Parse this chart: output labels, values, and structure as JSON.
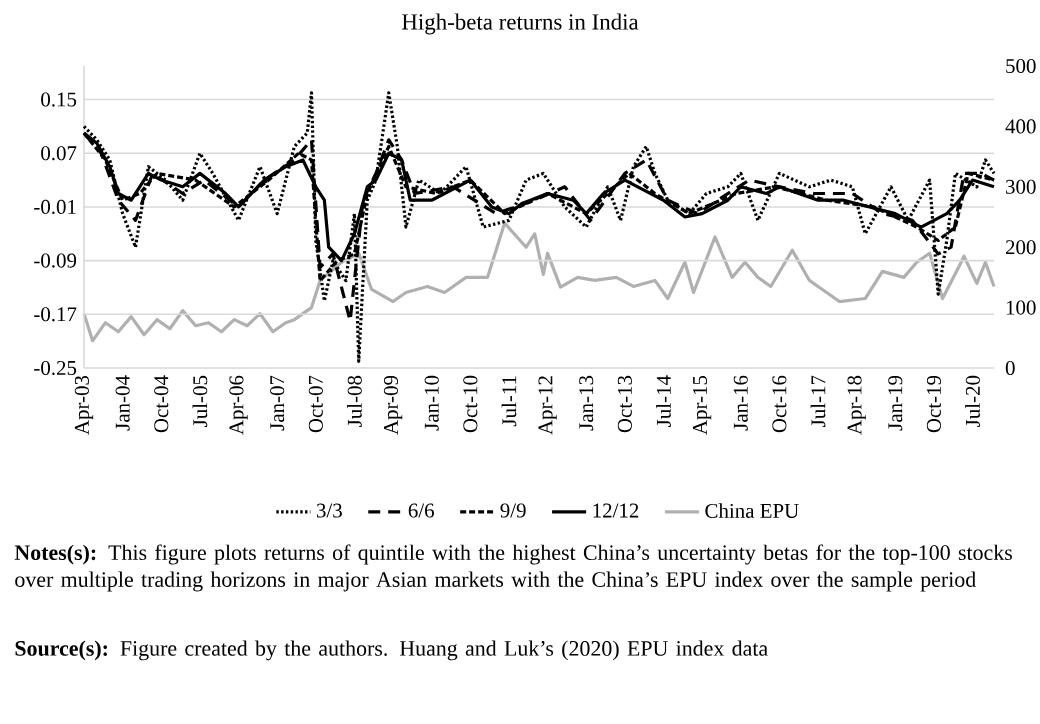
{
  "chart_data": {
    "type": "line",
    "title": "High-beta returns in India",
    "annotations": [
      "**Notes(s):** This figure plots returns of quintile with the highest China’s uncertainty betas for the top-100 stocks over multiple trading horizons in major Asian markets with the China’s EPU index over the sample period",
      "**Source(s):** Figure created by the authors. Huang and Luk’s (2020) EPU index data"
    ],
    "series": [
      {
        "name": "3/3",
        "color": "#000000",
        "line_style": "dotted",
        "x": [
          "2003-04",
          "2003-07",
          "2003-10",
          "2004-01",
          "2004-04",
          "2004-07",
          "2004-11",
          "2005-03",
          "2005-07",
          "2005-10",
          "2006-04",
          "2006-09",
          "2007-01",
          "2007-05",
          "2007-08",
          "2007-09",
          "2007-10",
          "2007-12",
          "2008-02",
          "2008-05",
          "2008-07",
          "2008-08",
          "2008-10",
          "2008-12",
          "2009-03",
          "2009-05",
          "2009-07",
          "2009-10",
          "2010-03",
          "2010-09",
          "2011-01",
          "2011-07",
          "2011-11",
          "2012-03",
          "2012-08",
          "2013-01",
          "2013-06",
          "2013-09",
          "2013-12",
          "2014-03",
          "2014-05",
          "2014-08",
          "2015-01",
          "2015-05",
          "2015-10",
          "2016-01",
          "2016-05",
          "2016-10",
          "2017-05",
          "2017-10",
          "2018-03",
          "2018-06",
          "2018-12",
          "2019-04",
          "2019-09",
          "2019-11",
          "2020-01",
          "2020-03",
          "2020-08",
          "2020-10",
          "2020-12"
        ],
        "values": [
          0.11,
          0.09,
          0.06,
          -0.02,
          -0.07,
          0.05,
          0.03,
          0.0,
          0.07,
          0.04,
          -0.03,
          0.05,
          -0.02,
          0.08,
          0.1,
          0.16,
          -0.06,
          -0.15,
          -0.09,
          -0.12,
          -0.02,
          -0.24,
          0.0,
          0.03,
          0.16,
          0.08,
          -0.04,
          0.03,
          0.01,
          0.05,
          -0.04,
          -0.03,
          0.03,
          0.04,
          -0.01,
          -0.04,
          0.02,
          -0.03,
          0.05,
          0.08,
          0.04,
          0.0,
          -0.02,
          0.01,
          0.02,
          0.04,
          -0.03,
          0.04,
          0.02,
          0.03,
          0.02,
          -0.05,
          0.02,
          -0.03,
          0.03,
          -0.14,
          -0.06,
          0.04,
          0.02,
          0.06,
          0.04
        ]
      },
      {
        "name": "6/6",
        "color": "#000000",
        "line_style": "dashed",
        "x": [
          "2003-04",
          "2003-08",
          "2003-12",
          "2004-04",
          "2004-08",
          "2005-03",
          "2005-08",
          "2006-04",
          "2006-10",
          "2007-05",
          "2007-09",
          "2007-11",
          "2008-02",
          "2008-06",
          "2008-09",
          "2008-12",
          "2009-03",
          "2009-06",
          "2009-09",
          "2010-06",
          "2011-04",
          "2012-01",
          "2012-08",
          "2013-02",
          "2013-10",
          "2014-03",
          "2014-08",
          "2015-03",
          "2015-10",
          "2016-03",
          "2016-10",
          "2017-06",
          "2018-03",
          "2018-10",
          "2019-05",
          "2019-11",
          "2020-02",
          "2020-05",
          "2020-09",
          "2020-12"
        ],
        "values": [
          0.1,
          0.07,
          0.0,
          -0.03,
          0.04,
          0.01,
          0.03,
          -0.01,
          0.03,
          0.06,
          0.09,
          -0.1,
          -0.08,
          -0.18,
          0.0,
          0.04,
          0.09,
          0.06,
          0.01,
          0.02,
          -0.02,
          0.0,
          0.02,
          -0.03,
          0.04,
          0.06,
          0.0,
          -0.02,
          0.01,
          0.03,
          0.02,
          0.01,
          0.01,
          -0.02,
          -0.03,
          -0.08,
          -0.07,
          0.04,
          0.04,
          0.03
        ]
      },
      {
        "name": "9/9",
        "color": "#000000",
        "line_style": "dashed",
        "x": [
          "2003-04",
          "2003-09",
          "2004-01",
          "2004-05",
          "2004-09",
          "2005-06",
          "2006-03",
          "2006-11",
          "2007-06",
          "2007-09",
          "2007-11",
          "2008-03",
          "2008-07",
          "2008-10",
          "2009-03",
          "2009-07",
          "2010-02",
          "2010-10",
          "2011-06",
          "2012-04",
          "2013-01",
          "2013-11",
          "2014-05",
          "2015-01",
          "2015-12",
          "2016-09",
          "2017-09",
          "2018-08",
          "2019-06",
          "2019-11",
          "2020-03",
          "2020-06",
          "2020-12"
        ],
        "values": [
          0.1,
          0.06,
          0.0,
          0.01,
          0.04,
          0.03,
          -0.01,
          0.03,
          0.07,
          0.06,
          -0.12,
          -0.09,
          -0.08,
          0.01,
          0.08,
          0.02,
          0.01,
          0.03,
          -0.02,
          0.01,
          -0.02,
          0.04,
          0.01,
          -0.02,
          0.01,
          0.02,
          0.0,
          -0.01,
          -0.04,
          -0.06,
          -0.04,
          0.04,
          0.03
        ]
      },
      {
        "name": "12/12",
        "color": "#000000",
        "line_style": "solid",
        "x": [
          "2003-04",
          "2003-07",
          "2003-10",
          "2003-12",
          "2004-03",
          "2004-07",
          "2004-10",
          "2005-03",
          "2005-07",
          "2006-01",
          "2006-04",
          "2006-10",
          "2007-03",
          "2007-07",
          "2007-10",
          "2007-12",
          "2008-01",
          "2008-04",
          "2008-07",
          "2008-10",
          "2008-12",
          "2009-03",
          "2009-06",
          "2009-08",
          "2010-01",
          "2010-10",
          "2011-03",
          "2011-07",
          "2011-10",
          "2011-12",
          "2012-04",
          "2012-10",
          "2013-01",
          "2013-05",
          "2013-10",
          "2014-01",
          "2014-07",
          "2014-12",
          "2015-04",
          "2015-10",
          "2016-01",
          "2016-07",
          "2016-10",
          "2017-07",
          "2018-01",
          "2018-07",
          "2019-01",
          "2019-07",
          "2019-10",
          "2020-01",
          "2020-04",
          "2020-07",
          "2020-12"
        ],
        "values": [
          0.1,
          0.085,
          0.05,
          0.01,
          0.0,
          0.04,
          0.03,
          0.02,
          0.04,
          0.01,
          -0.01,
          0.03,
          0.05,
          0.06,
          0.02,
          0.0,
          -0.07,
          -0.09,
          -0.05,
          0.02,
          0.03,
          0.07,
          0.06,
          0.0,
          0.0,
          0.03,
          -0.01,
          -0.02,
          -0.005,
          0.0,
          0.01,
          0.0,
          -0.02,
          0.01,
          0.03,
          0.02,
          0.0,
          -0.025,
          -0.02,
          0.0,
          0.02,
          0.01,
          0.02,
          0.0,
          0.0,
          -0.01,
          -0.02,
          -0.04,
          -0.03,
          -0.02,
          0.0,
          0.03,
          0.02
        ]
      },
      {
        "name": "China EPU",
        "color": "#b0b0b0",
        "line_style": "solid",
        "axis": "y2",
        "x": [
          "2003-04",
          "2003-06",
          "2003-09",
          "2003-12",
          "2004-03",
          "2004-06",
          "2004-09",
          "2004-12",
          "2005-03",
          "2005-06",
          "2005-09",
          "2005-12",
          "2006-03",
          "2006-06",
          "2006-09",
          "2006-12",
          "2007-03",
          "2007-05",
          "2007-09",
          "2007-11",
          "2008-04",
          "2008-08",
          "2008-11",
          "2009-04",
          "2009-07",
          "2009-12",
          "2010-04",
          "2010-09",
          "2011-02",
          "2011-06",
          "2011-11",
          "2012-01",
          "2012-03",
          "2012-04",
          "2012-07",
          "2012-11",
          "2013-03",
          "2013-08",
          "2013-12",
          "2014-05",
          "2014-08",
          "2014-12",
          "2015-02",
          "2015-07",
          "2015-11",
          "2016-02",
          "2016-05",
          "2016-08",
          "2017-01",
          "2017-05",
          "2017-07",
          "2017-12",
          "2018-06",
          "2018-10",
          "2019-03",
          "2019-06",
          "2019-09",
          "2019-12",
          "2020-04",
          "2020-05",
          "2020-08",
          "2020-10",
          "2020-12"
        ],
        "values": [
          90,
          45,
          75,
          60,
          85,
          55,
          80,
          65,
          95,
          70,
          75,
          60,
          80,
          70,
          90,
          60,
          75,
          80,
          100,
          145,
          175,
          190,
          130,
          110,
          125,
          135,
          125,
          150,
          150,
          240,
          200,
          222,
          155,
          190,
          134,
          150,
          145,
          150,
          135,
          145,
          115,
          175,
          125,
          217,
          150,
          175,
          150,
          135,
          195,
          145,
          135,
          110,
          115,
          160,
          150,
          175,
          190,
          115,
          170,
          185,
          140,
          175,
          135
        ]
      }
    ],
    "ylim": [
      -0.25,
      0.2
    ],
    "yticks": [
      0.15,
      0.07,
      -0.01,
      -0.09,
      -0.17,
      -0.25
    ],
    "y2lim": [
      0,
      500
    ],
    "y2ticks": [
      0,
      100,
      200,
      300,
      400,
      500
    ],
    "xlim": [
      "2003-04",
      "2020-12"
    ],
    "xticks": [
      {
        "value": "2003-04",
        "label": "Apr-03"
      },
      {
        "value": "2004-01",
        "label": "Jan-04"
      },
      {
        "value": "2004-10",
        "label": "Oct-04"
      },
      {
        "value": "2005-07",
        "label": "Jul-05"
      },
      {
        "value": "2006-04",
        "label": "Apr-06"
      },
      {
        "value": "2007-01",
        "label": "Jan-07"
      },
      {
        "value": "2007-10",
        "label": "Oct-07"
      },
      {
        "value": "2008-07",
        "label": "Jul-08"
      },
      {
        "value": "2009-04",
        "label": "Apr-09"
      },
      {
        "value": "2010-01",
        "label": "Jan-10"
      },
      {
        "value": "2010-10",
        "label": "Oct-10"
      },
      {
        "value": "2011-07",
        "label": "Jul-11"
      },
      {
        "value": "2012-04",
        "label": "Apr-12"
      },
      {
        "value": "2013-01",
        "label": "Jan-13"
      },
      {
        "value": "2013-10",
        "label": "Oct-13"
      },
      {
        "value": "2014-07",
        "label": "Jul-14"
      },
      {
        "value": "2015-04",
        "label": "Apr-15"
      },
      {
        "value": "2016-01",
        "label": "Jan-16"
      },
      {
        "value": "2016-10",
        "label": "Oct-16"
      },
      {
        "value": "2017-07",
        "label": "Jul-17"
      },
      {
        "value": "2018-04",
        "label": "Apr-18"
      },
      {
        "value": "2019-01",
        "label": "Jan-19"
      },
      {
        "value": "2019-10",
        "label": "Oct-19"
      },
      {
        "value": "2020-07",
        "label": "Jul-20"
      }
    ],
    "grid": "y",
    "legend": "bottom"
  }
}
